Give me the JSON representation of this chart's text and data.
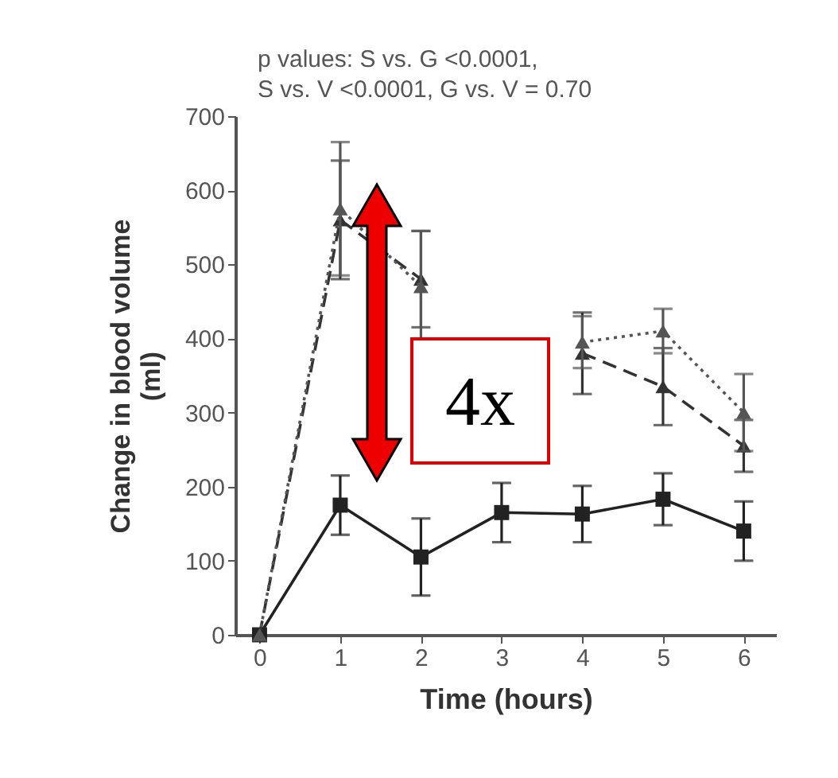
{
  "chart_data": {
    "type": "line",
    "title": "p values: S vs. G <0.0001, S vs. V <0.0001, G vs. V = 0.70",
    "xlabel": "Time (hours)",
    "ylabel": "Change in blood volume (ml)",
    "x": [
      0,
      1,
      2,
      3,
      4,
      5,
      6
    ],
    "series": [
      {
        "color": "#222222",
        "line_style": "solid",
        "marker": "square",
        "values": [
          0,
          175,
          105,
          165,
          163,
          183,
          140
        ],
        "errors": [
          null,
          40,
          52,
          40,
          38,
          35,
          40
        ]
      },
      {
        "color": "#333333",
        "line_style": "dashed",
        "marker": "triangle",
        "values": [
          0,
          560,
          480,
          null,
          380,
          335,
          255
        ],
        "errors": [
          null,
          80,
          65,
          null,
          55,
          52,
          35
        ]
      },
      {
        "color": "#555555",
        "line_style": "dotted",
        "marker": "triangle",
        "values": [
          0,
          575,
          470,
          null,
          395,
          410,
          300
        ],
        "errors": [
          null,
          90,
          75,
          null,
          35,
          30,
          52
        ]
      }
    ],
    "xlim": [
      -0.3,
      6.4
    ],
    "xticks": [
      0,
      1,
      2,
      3,
      4,
      5,
      6
    ],
    "ylim": [
      0,
      700
    ],
    "yticks": [
      0,
      100,
      200,
      300,
      400,
      500,
      600,
      700
    ],
    "annotations": [
      "4x"
    ]
  }
}
